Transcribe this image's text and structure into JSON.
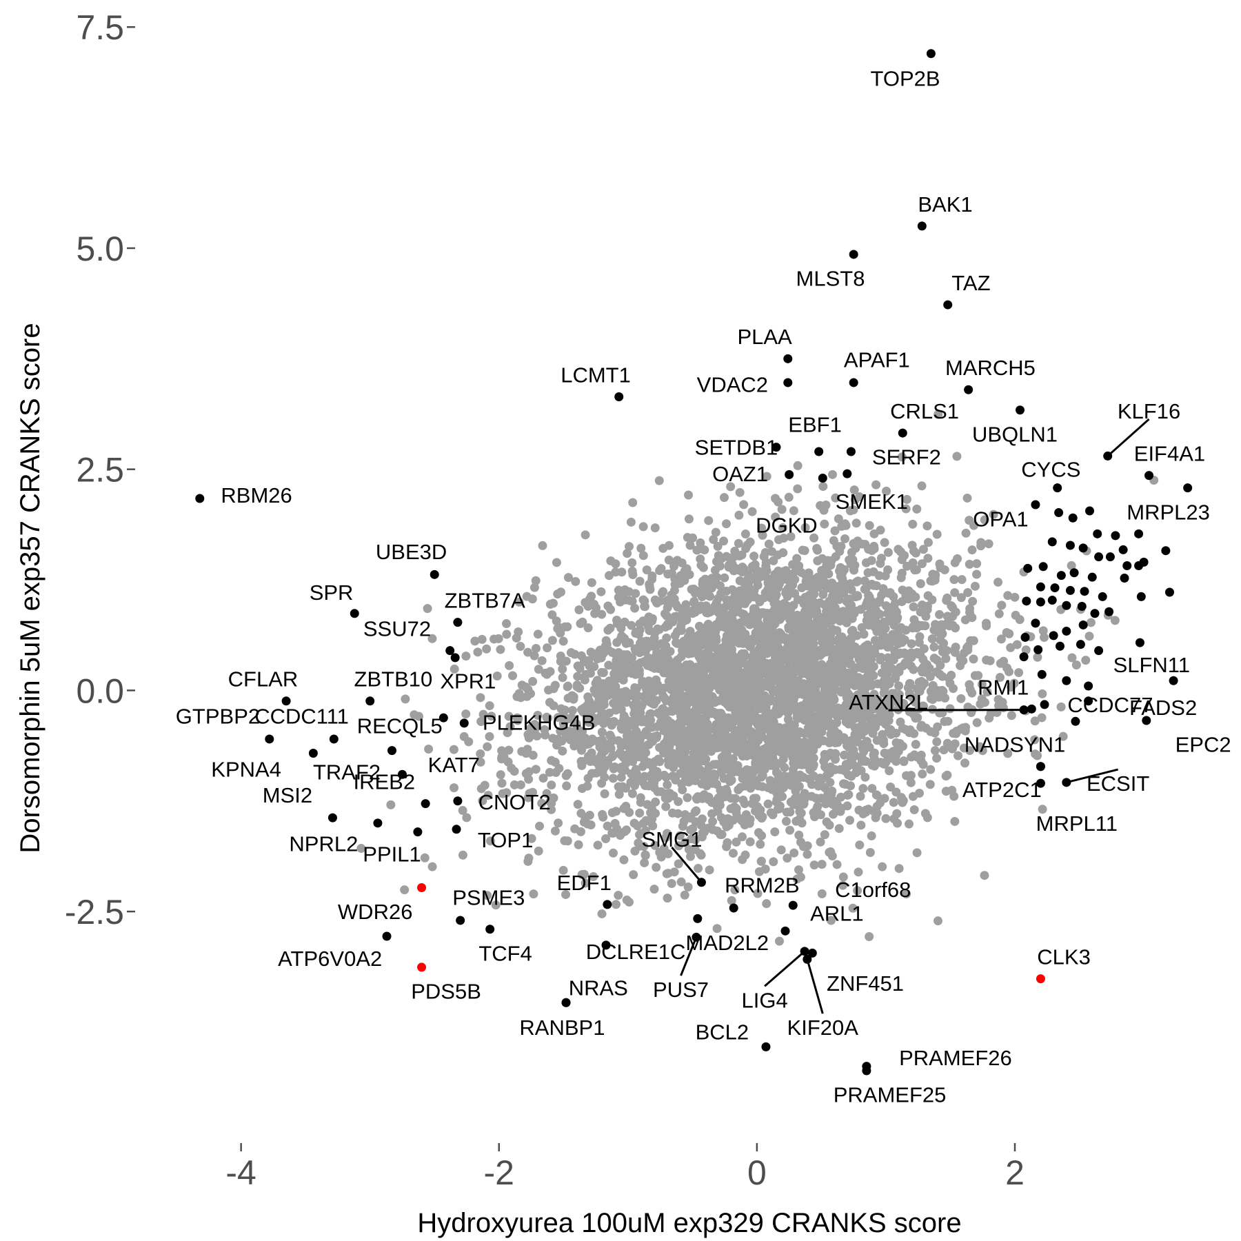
{
  "chart_data": {
    "type": "scatter",
    "title": "",
    "xlabel": "Hydroxyurea 100uM exp329 CRANKS score",
    "ylabel": "Dorsomorphin 5uM exp357 CRANKS score",
    "xlim": [
      -4.8,
      3.7
    ],
    "ylim": [
      -4.9,
      7.65
    ],
    "xticks": [
      -4,
      -2,
      0,
      2
    ],
    "xtick_labels": [
      "-4",
      "-2",
      "0",
      "2"
    ],
    "yticks": [
      -2.5,
      0.0,
      2.5,
      5.0,
      7.5
    ],
    "ytick_labels": [
      "-2.5",
      "0.0",
      "2.5",
      "5.0",
      "7.5"
    ],
    "grid": false,
    "legend": "none",
    "colors": {
      "background": "#9f9f9f",
      "highlight": "#000000",
      "special": "#ff0000",
      "leader_line": "#000000"
    },
    "background_series": {
      "name": "",
      "color": "#9f9f9f",
      "note_count": 4000,
      "x_center": 0.0,
      "y_center": 0.0,
      "x_sd": 0.85,
      "y_sd": 0.85,
      "correlation": 0.18
    },
    "labeled_points": [
      {
        "label": "TOP2B",
        "x": 1.35,
        "y": 7.2,
        "dx": -0.2,
        "dy": -0.28
      },
      {
        "label": "BAK1",
        "x": 1.28,
        "y": 5.25,
        "dx": 0.18,
        "dy": 0.25
      },
      {
        "label": "MLST8",
        "x": 0.75,
        "y": 4.93,
        "dx": -0.18,
        "dy": -0.27
      },
      {
        "label": "TAZ",
        "x": 1.48,
        "y": 4.36,
        "dx": 0.18,
        "dy": 0.25
      },
      {
        "label": "PLAA",
        "x": 0.24,
        "y": 3.75,
        "dx": -0.18,
        "dy": 0.25
      },
      {
        "label": "VDAC2",
        "x": 0.24,
        "y": 3.48,
        "dx": -0.43,
        "dy": -0.02
      },
      {
        "label": "APAF1",
        "x": 0.75,
        "y": 3.48,
        "dx": 0.18,
        "dy": 0.26
      },
      {
        "label": "LCMT1",
        "x": -1.07,
        "y": 3.32,
        "dx": -0.18,
        "dy": 0.25
      },
      {
        "label": "MARCH5",
        "x": 1.64,
        "y": 3.4,
        "dx": 0.17,
        "dy": 0.25
      },
      {
        "label": "CRLS1",
        "x": 1.13,
        "y": 2.91,
        "dx": 0.17,
        "dy": 0.25
      },
      {
        "label": "UBQLN1",
        "x": 2.04,
        "y": 3.17,
        "dx": -0.04,
        "dy": -0.27
      },
      {
        "label": "KLF16",
        "x": 2.72,
        "y": 2.65,
        "dx": 0.32,
        "dy": 0.51,
        "leader": true
      },
      {
        "label": "SETDB1",
        "x": 0.15,
        "y": 2.75,
        "dx": -0.31,
        "dy": 0.0
      },
      {
        "label": "EBF1",
        "x": 0.48,
        "y": 2.7,
        "dx": -0.03,
        "dy": 0.31
      },
      {
        "label": "SERF2",
        "x": 0.73,
        "y": 2.7,
        "dx": 0.43,
        "dy": -0.06
      },
      {
        "label": "EIF4A1",
        "x": 3.04,
        "y": 2.43,
        "dx": 0.16,
        "dy": 0.25
      },
      {
        "label": "OAZ1",
        "x": 0.25,
        "y": 2.44,
        "dx": -0.38,
        "dy": 0.01
      },
      {
        "label": "CYCS",
        "x": 2.33,
        "y": 2.29,
        "dx": -0.05,
        "dy": 0.21
      },
      {
        "label": "MRPL23",
        "x": 3.34,
        "y": 2.29,
        "dx": -0.15,
        "dy": -0.27
      },
      {
        "label": "SMEK1",
        "x": 0.7,
        "y": 2.45,
        "dx": 0.19,
        "dy": -0.31
      },
      {
        "label": "RBM26",
        "x": -4.32,
        "y": 2.17,
        "dx": 0.44,
        "dy": 0.04
      },
      {
        "label": "DGKD",
        "x": 0.51,
        "y": 2.4,
        "dx": -0.28,
        "dy": -0.53
      },
      {
        "label": "OPA1",
        "x": 2.16,
        "y": 2.1,
        "dx": -0.27,
        "dy": -0.16
      },
      {
        "label": "UBE3D",
        "x": -2.5,
        "y": 1.31,
        "dx": -0.18,
        "dy": 0.26
      },
      {
        "label": "SPR",
        "x": -3.12,
        "y": 0.87,
        "dx": -0.18,
        "dy": 0.24
      },
      {
        "label": "ZBTB7A",
        "x": -2.32,
        "y": 0.77,
        "dx": 0.21,
        "dy": 0.25
      },
      {
        "label": "SSU72",
        "x": -2.38,
        "y": 0.45,
        "dx": -0.41,
        "dy": 0.25
      },
      {
        "label": "SLFN11",
        "x": 2.97,
        "y": 0.54,
        "dx": 0.09,
        "dy": -0.25
      },
      {
        "label": "CFLAR",
        "x": -3.65,
        "y": -0.12,
        "dx": -0.18,
        "dy": 0.25
      },
      {
        "label": "ZBTB10",
        "x": -3.0,
        "y": -0.12,
        "dx": 0.18,
        "dy": 0.25
      },
      {
        "label": "XPR1",
        "x": -2.34,
        "y": 0.37,
        "dx": 0.1,
        "dy": -0.26
      },
      {
        "label": "RMI1",
        "x": 2.13,
        "y": -0.21,
        "dx": -0.22,
        "dy": 0.25
      },
      {
        "label": "ATXN2L",
        "x": 2.07,
        "y": -0.22,
        "dx": -1.05,
        "dy": 0.09,
        "leader": true
      },
      {
        "label": "GTPBP2",
        "x": -3.78,
        "y": -0.55,
        "dx": -0.4,
        "dy": 0.26
      },
      {
        "label": "CCDC111",
        "x": -3.28,
        "y": -0.55,
        "dx": -0.25,
        "dy": 0.26
      },
      {
        "label": "RECQL5",
        "x": -2.43,
        "y": -0.31,
        "dx": -0.34,
        "dy": -0.09
      },
      {
        "label": "PLEKHG4B",
        "x": -2.27,
        "y": -0.37,
        "dx": 0.58,
        "dy": 0.01
      },
      {
        "label": "CCDC77",
        "x": 2.47,
        "y": -0.35,
        "dx": 0.27,
        "dy": 0.19
      },
      {
        "label": "FADS2",
        "x": 3.23,
        "y": 0.11,
        "dx": -0.08,
        "dy": -0.3
      },
      {
        "label": "EPC2",
        "x": 3.02,
        "y": -0.34,
        "dx": 0.44,
        "dy": -0.27
      },
      {
        "label": "NADSYN1",
        "x": 2.2,
        "y": -0.86,
        "dx": -0.2,
        "dy": 0.25
      },
      {
        "label": "KPNA4",
        "x": -3.44,
        "y": -0.71,
        "dx": -0.52,
        "dy": -0.18
      },
      {
        "label": "TRAF2",
        "x": -2.83,
        "y": -0.68,
        "dx": -0.35,
        "dy": -0.24
      },
      {
        "label": "KAT7",
        "x": -2.75,
        "y": -0.95,
        "dx": 0.4,
        "dy": 0.11
      },
      {
        "label": "ATP2C1",
        "x": 2.2,
        "y": -0.86,
        "dx": -0.3,
        "dy": -0.26
      },
      {
        "label": "ECSIT",
        "x": 2.4,
        "y": -1.04,
        "dx": 0.4,
        "dy": -0.01,
        "leader": true
      },
      {
        "label": "MSI2",
        "x": -3.29,
        "y": -1.44,
        "dx": -0.35,
        "dy": 0.26
      },
      {
        "label": "IREB2",
        "x": -2.57,
        "y": -1.28,
        "dx": -0.32,
        "dy": 0.25
      },
      {
        "label": "CNOT2",
        "x": -2.32,
        "y": -1.25,
        "dx": 0.44,
        "dy": -0.01
      },
      {
        "label": "MRPL11",
        "x": 2.2,
        "y": -1.05,
        "dx": 0.28,
        "dy": -0.45
      },
      {
        "label": "NPRL2",
        "x": -2.94,
        "y": -1.5,
        "dx": -0.42,
        "dy": -0.23
      },
      {
        "label": "TOP1",
        "x": -2.33,
        "y": -1.57,
        "dx": 0.38,
        "dy": -0.12
      },
      {
        "label": "PPIL1",
        "x": -2.63,
        "y": -1.6,
        "dx": -0.2,
        "dy": -0.25
      },
      {
        "label": "SMG1",
        "x": -0.43,
        "y": -2.17,
        "dx": -0.23,
        "dy": 0.49,
        "leader": true
      },
      {
        "label": "EDF1",
        "x": -1.16,
        "y": -2.42,
        "dx": -0.18,
        "dy": 0.25
      },
      {
        "label": "RRM2B",
        "x": -0.18,
        "y": -2.46,
        "dx": 0.22,
        "dy": 0.26
      },
      {
        "label": "C1orf68",
        "x": 0.28,
        "y": -2.43,
        "dx": 0.62,
        "dy": 0.18
      },
      {
        "label": "PSME3",
        "x": -2.3,
        "y": -2.6,
        "dx": 0.22,
        "dy": 0.26
      },
      {
        "label": "WDR26",
        "x": -2.6,
        "y": -2.23,
        "dx": -0.36,
        "dy": -0.27
      },
      {
        "label": "TCF4",
        "x": -2.07,
        "y": -2.7,
        "dx": 0.12,
        "dy": -0.27
      },
      {
        "label": "ATP6V0A2",
        "x": -2.87,
        "y": -2.78,
        "dx": -0.44,
        "dy": -0.25
      },
      {
        "label": "ARL1",
        "x": 0.22,
        "y": -2.72,
        "dx": 0.4,
        "dy": 0.2
      },
      {
        "label": "DCLRE1C",
        "x": -1.17,
        "y": -2.88,
        "dx": 0.23,
        "dy": -0.07
      },
      {
        "label": "MAD2L2",
        "x": -0.46,
        "y": -2.58,
        "dx": 0.23,
        "dy": -0.27
      },
      {
        "label": "PUS7",
        "x": -0.47,
        "y": -2.79,
        "dx": -0.12,
        "dy": -0.59,
        "leader": true
      },
      {
        "label": "LIG4",
        "x": 0.37,
        "y": -2.95,
        "dx": -0.31,
        "dy": -0.55,
        "leader": true
      },
      {
        "label": "ZNF451",
        "x": 0.43,
        "y": -2.97,
        "dx": 0.41,
        "dy": -0.34
      },
      {
        "label": "KIF20A",
        "x": 0.39,
        "y": -3.04,
        "dx": 0.12,
        "dy": -0.77,
        "leader": true
      },
      {
        "label": "PDS5B",
        "x": -2.6,
        "y": -3.13,
        "dx": 0.19,
        "dy": -0.27
      },
      {
        "label": "CLK3",
        "x": 2.2,
        "y": -3.26,
        "dx": 0.18,
        "dy": 0.25
      },
      {
        "label": "NRAS",
        "x": -1.48,
        "y": -3.53,
        "dx": 0.25,
        "dy": 0.17
      },
      {
        "label": "RANBP1",
        "x": -1.48,
        "y": -3.53,
        "dx": -0.03,
        "dy": -0.28
      },
      {
        "label": "BCL2",
        "x": 0.07,
        "y": -4.03,
        "dx": -0.34,
        "dy": 0.17
      },
      {
        "label": "PRAMEF26",
        "x": 0.85,
        "y": -4.25,
        "dx": 0.69,
        "dy": 0.1
      },
      {
        "label": "PRAMEF25",
        "x": 0.85,
        "y": -4.3,
        "dx": 0.18,
        "dy": -0.27
      }
    ],
    "special_points": [
      "WDR26",
      "PDS5B",
      "CLK3"
    ],
    "unlabeled_points": [
      {
        "x": 2.34,
        "y": 2.01
      },
      {
        "x": 2.45,
        "y": 1.95
      },
      {
        "x": 2.58,
        "y": 2.03
      },
      {
        "x": 2.64,
        "y": 1.77
      },
      {
        "x": 2.78,
        "y": 1.75
      },
      {
        "x": 2.84,
        "y": 1.59
      },
      {
        "x": 2.96,
        "y": 1.77
      },
      {
        "x": 3.17,
        "y": 1.58
      },
      {
        "x": 2.29,
        "y": 1.68
      },
      {
        "x": 2.43,
        "y": 1.64
      },
      {
        "x": 2.53,
        "y": 1.61
      },
      {
        "x": 2.65,
        "y": 1.51
      },
      {
        "x": 2.74,
        "y": 1.51
      },
      {
        "x": 2.87,
        "y": 1.41
      },
      {
        "x": 2.96,
        "y": 1.41
      },
      {
        "x": 3.0,
        "y": 1.45
      },
      {
        "x": 2.1,
        "y": 1.38
      },
      {
        "x": 2.22,
        "y": 1.4
      },
      {
        "x": 2.36,
        "y": 1.3
      },
      {
        "x": 2.46,
        "y": 1.33
      },
      {
        "x": 2.6,
        "y": 1.28
      },
      {
        "x": 2.85,
        "y": 1.27
      },
      {
        "x": 2.2,
        "y": 1.17
      },
      {
        "x": 2.31,
        "y": 1.16
      },
      {
        "x": 2.43,
        "y": 1.13
      },
      {
        "x": 2.54,
        "y": 1.12
      },
      {
        "x": 2.68,
        "y": 1.06
      },
      {
        "x": 2.98,
        "y": 1.06
      },
      {
        "x": 3.2,
        "y": 1.11
      },
      {
        "x": 2.09,
        "y": 1.01
      },
      {
        "x": 2.2,
        "y": 1.0
      },
      {
        "x": 2.29,
        "y": 1.02
      },
      {
        "x": 2.4,
        "y": 0.96
      },
      {
        "x": 2.52,
        "y": 0.95
      },
      {
        "x": 2.73,
        "y": 0.89
      },
      {
        "x": 2.16,
        "y": 0.76
      },
      {
        "x": 2.4,
        "y": 0.67
      },
      {
        "x": 2.53,
        "y": 0.74
      },
      {
        "x": 2.62,
        "y": 0.87
      },
      {
        "x": 2.3,
        "y": 0.62
      },
      {
        "x": 2.51,
        "y": 0.52
      },
      {
        "x": 2.65,
        "y": 0.45
      },
      {
        "x": 2.35,
        "y": 0.5
      },
      {
        "x": 2.08,
        "y": 0.6
      },
      {
        "x": 2.07,
        "y": 0.38
      },
      {
        "x": 2.21,
        "y": 0.18
      },
      {
        "x": 2.4,
        "y": 0.11
      },
      {
        "x": 2.57,
        "y": 0.05
      },
      {
        "x": 2.23,
        "y": -0.16
      },
      {
        "x": 2.57,
        "y": -0.12
      },
      {
        "x": 2.18,
        "y": 0.46
      }
    ]
  }
}
